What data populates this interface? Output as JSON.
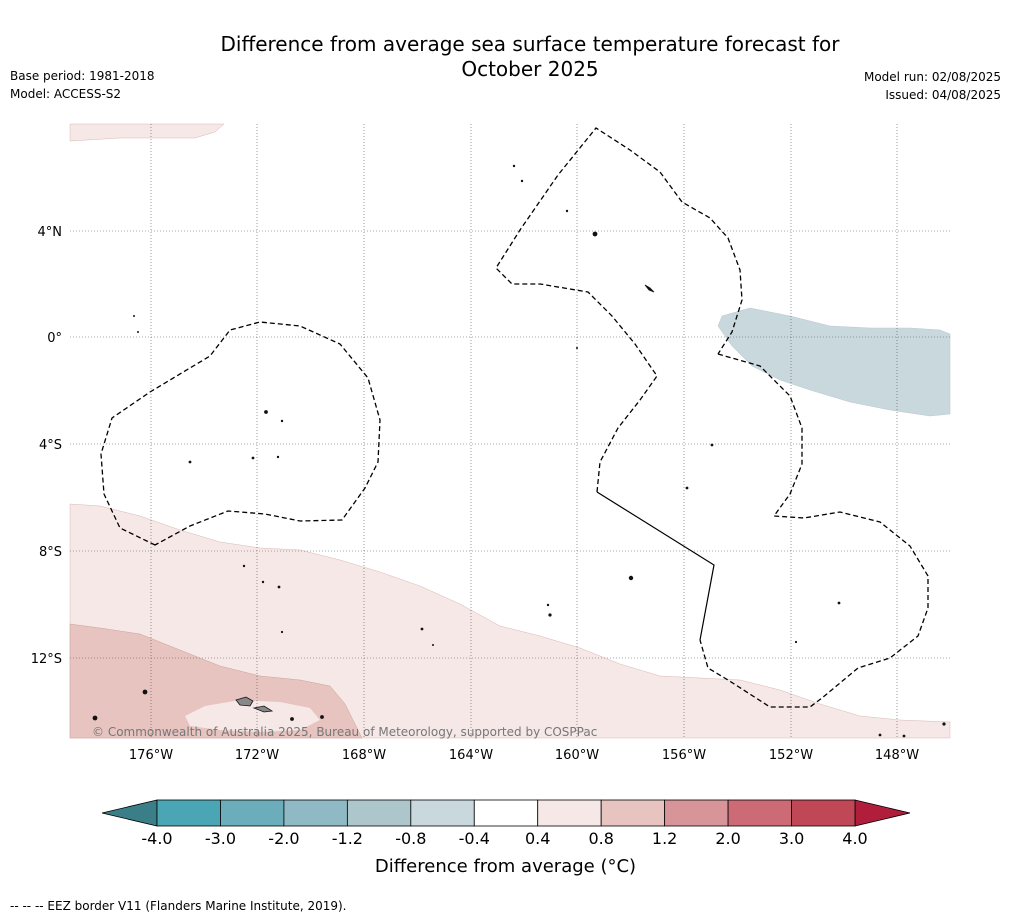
{
  "title_line1": "Difference from average sea surface temperature forecast for",
  "title_line2": "October 2025",
  "meta_left": [
    "Base period: 1981-2018",
    "Model: ACCESS-S2"
  ],
  "meta_right": [
    "Model run: 02/08/2025",
    "Issued: 04/08/2025"
  ],
  "copyright": "© Commonwealth of Australia 2025, Bureau of Meteorology, supported by COSPPac",
  "lat_labels": [
    "4°N",
    "0°",
    "4°S",
    "8°S",
    "12°S"
  ],
  "lon_labels": [
    "176°W",
    "172°W",
    "168°W",
    "164°W",
    "160°W",
    "156°W",
    "152°W",
    "148°W"
  ],
  "colorbar": {
    "ticks": [
      "-4.0",
      "-3.0",
      "-2.0",
      "-1.2",
      "-0.8",
      "-0.4",
      "0.4",
      "0.8",
      "1.2",
      "2.0",
      "3.0",
      "4.0"
    ],
    "colors": [
      "#4aa6b5",
      "#6cadbc",
      "#8fb9c4",
      "#acc6cc",
      "#c9d8dc",
      "#ffffff",
      "#f5e8e6",
      "#e7c4bf",
      "#d7959a",
      "#cc6b75",
      "#c04856"
    ],
    "under_color": "#3a7f87",
    "over_color": "#b01e3c",
    "label": "Difference from average (°C)"
  },
  "footnote": "-- -- -- EEZ border V11 (Flanders Marine Institute, 2019)."
}
